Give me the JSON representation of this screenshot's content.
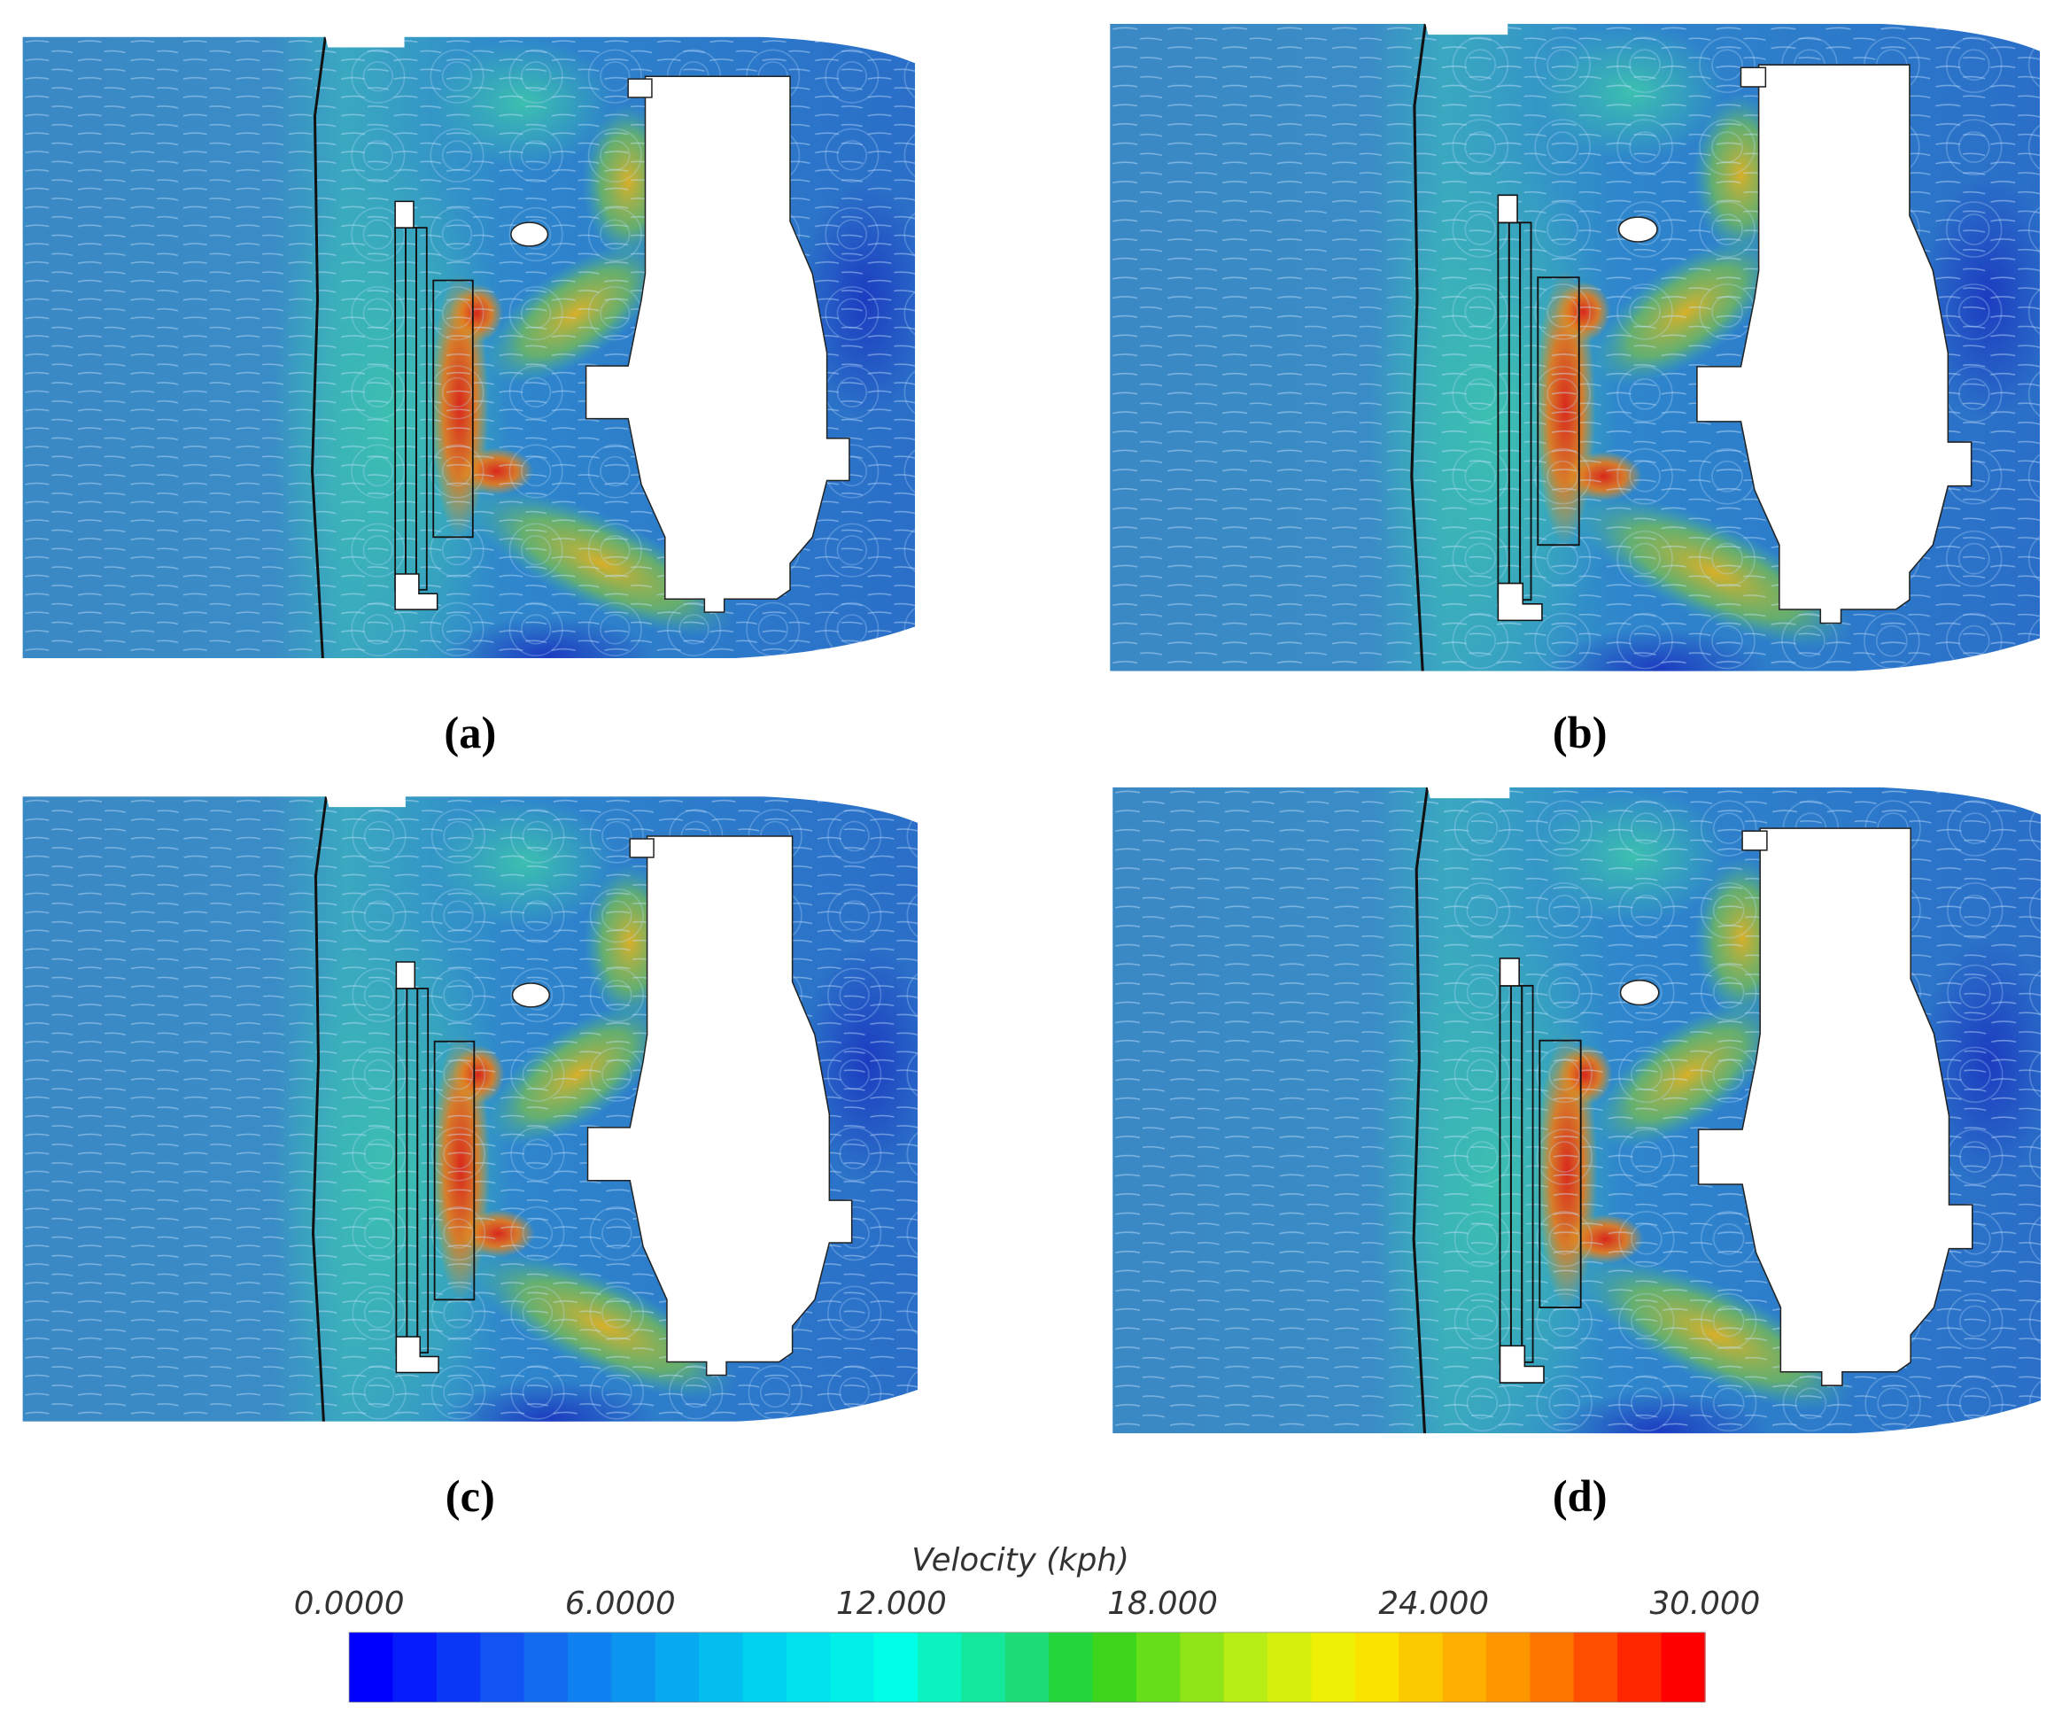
{
  "panels": [
    {
      "label": "(a)"
    },
    {
      "label": "(b)"
    },
    {
      "label": "(c)"
    },
    {
      "label": "(d)"
    }
  ],
  "colorbar": {
    "title": "Velocity (kph)",
    "range": [
      0,
      30
    ],
    "ticks": [
      {
        "value": 0,
        "label": "0.0000"
      },
      {
        "value": 6,
        "label": "6.0000"
      },
      {
        "value": 12,
        "label": "12.000"
      },
      {
        "value": 18,
        "label": "18.000"
      },
      {
        "value": 24,
        "label": "24.000"
      },
      {
        "value": 30,
        "label": "30.000"
      }
    ]
  }
}
